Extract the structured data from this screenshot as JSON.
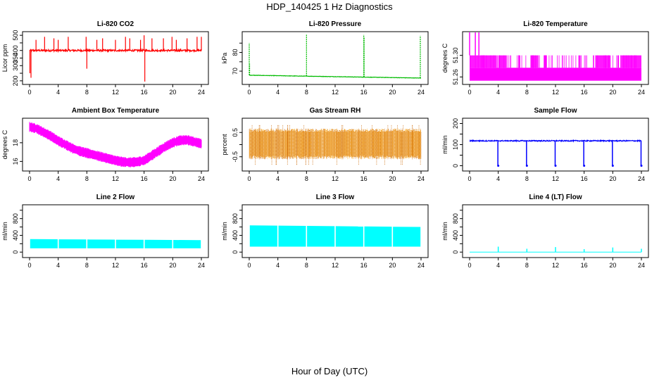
{
  "figure_title": "HDP_140425 1 Hz Diagnostics",
  "xaxis_label": "Hour of Day (UTC)",
  "chart_data": [
    {
      "id": "co2",
      "type": "line",
      "title": "Li-820 CO2",
      "ylabel": "Licor ppm",
      "xlim": [
        0,
        24
      ],
      "xticks": [
        0,
        4,
        8,
        12,
        16,
        20,
        24
      ],
      "ylim": [
        190,
        510
      ],
      "yticks": [
        200,
        250,
        300,
        350,
        400,
        450,
        500
      ],
      "ytick_labels": [
        "200",
        "",
        "300",
        "350",
        "400",
        "",
        "500"
      ],
      "color": "#ff0000",
      "series": [
        {
          "name": "CO2",
          "baseline": [
            400,
            400
          ],
          "noise": 12,
          "spikes": [
            [
              0.05,
              250
            ],
            [
              0.2,
              220
            ],
            [
              0.9,
              470
            ],
            [
              2.1,
              490
            ],
            [
              3.4,
              480
            ],
            [
              4.0,
              470
            ],
            [
              5.4,
              490
            ],
            [
              7.9,
              490
            ],
            [
              8.0,
              280
            ],
            [
              9.4,
              470
            ],
            [
              10.2,
              480
            ],
            [
              12.0,
              470
            ],
            [
              13.4,
              490
            ],
            [
              14.0,
              480
            ],
            [
              15.5,
              470
            ],
            [
              16.0,
              500
            ],
            [
              16.1,
              195
            ],
            [
              17.1,
              480
            ],
            [
              18.7,
              480
            ],
            [
              19.9,
              490
            ],
            [
              20.5,
              470
            ],
            [
              22.0,
              480
            ],
            [
              23.4,
              490
            ],
            [
              24.0,
              490
            ]
          ]
        }
      ]
    },
    {
      "id": "pressure",
      "type": "line",
      "title": "Li-820 Pressure",
      "ylabel": "kPa",
      "xlim": [
        0,
        24
      ],
      "xticks": [
        0,
        4,
        8,
        12,
        16,
        20,
        24
      ],
      "ylim": [
        64,
        90
      ],
      "yticks": [
        70,
        75,
        80,
        85
      ],
      "ytick_labels": [
        "70",
        "",
        "80",
        ""
      ],
      "color": "#00bb00",
      "series": [
        {
          "name": "Pressure",
          "baseline": [
            67.8,
            66.3
          ],
          "noise": 0.2,
          "spikes": [
            [
              0.0,
              85
            ],
            [
              0.05,
              74
            ],
            [
              8.0,
              89.5
            ],
            [
              16.0,
              89.5
            ],
            [
              16.05,
              88
            ],
            [
              23.9,
              89
            ]
          ]
        }
      ]
    },
    {
      "id": "temperature",
      "type": "band",
      "title": "Li-820 Temperature",
      "ylabel": "degrees C",
      "xlim": [
        0,
        24
      ],
      "xticks": [
        0,
        4,
        8,
        12,
        16,
        20,
        24
      ],
      "ylim": [
        51.25,
        51.34
      ],
      "yticks": [
        51.26,
        51.3
      ],
      "ytick_labels": [
        "51.26",
        "51.30"
      ],
      "color": "#ff00ff",
      "series": [
        {
          "name": "Temperature",
          "low": 51.253,
          "high": 51.277,
          "upper": 51.3,
          "upper_ranges": [
            [
              0,
              3.8
            ],
            [
              4.0,
              5.2
            ],
            [
              8.5,
              9.5
            ],
            [
              10.4,
              10.8
            ],
            [
              15.2,
              15.5
            ],
            [
              17.6,
              19.7
            ],
            [
              21.2,
              24
            ]
          ],
          "spikes": [
            [
              0.0,
              51.345
            ],
            [
              0.8,
              51.345
            ],
            [
              1.3,
              51.345
            ]
          ]
        }
      ]
    },
    {
      "id": "ambient",
      "type": "band",
      "title": "Ambient Box Temperature",
      "ylabel": "degrees C",
      "xlim": [
        0,
        24
      ],
      "xticks": [
        0,
        4,
        8,
        12,
        16,
        20,
        24
      ],
      "ylim": [
        15.2,
        20.4
      ],
      "yticks": [
        16,
        18
      ],
      "ytick_labels": [
        "16",
        "18"
      ],
      "color": "#ff00ff",
      "series": [
        {
          "name": "Ambient",
          "halfwidth": 0.45,
          "x": [
            0,
            1,
            2,
            3,
            4,
            5,
            6,
            7,
            8,
            9,
            10,
            11,
            12,
            13,
            14,
            15,
            16,
            17,
            18,
            19,
            20,
            21,
            22,
            23,
            24
          ],
          "y": [
            19.7,
            19.5,
            19.1,
            18.7,
            18.2,
            17.8,
            17.4,
            17.1,
            16.9,
            16.7,
            16.5,
            16.3,
            16.1,
            15.95,
            15.9,
            15.95,
            16.1,
            16.6,
            17.1,
            17.6,
            18.0,
            18.25,
            18.3,
            18.1,
            17.9
          ]
        }
      ]
    },
    {
      "id": "rh",
      "type": "band",
      "title": "Gas Stream RH",
      "ylabel": "percent",
      "xlim": [
        0,
        24
      ],
      "xticks": [
        0,
        4,
        8,
        12,
        16,
        20,
        24
      ],
      "ylim": [
        -1.0,
        1.0
      ],
      "yticks": [
        -0.5,
        0.0,
        0.5
      ],
      "ytick_labels": [
        "-0.5",
        "",
        "0.5"
      ],
      "color": "#ffa500",
      "color2": "#cc6600",
      "series": [
        {
          "name": "RH",
          "low": -0.6,
          "high": 0.65,
          "extreme_low": -0.85,
          "extreme_high": 0.8
        }
      ]
    },
    {
      "id": "sample",
      "type": "line",
      "title": "Sample Flow",
      "ylabel": "ml/min",
      "xlim": [
        0,
        24
      ],
      "xticks": [
        0,
        4,
        8,
        12,
        16,
        20,
        24
      ],
      "ylim": [
        -15,
        215
      ],
      "yticks": [
        0,
        50,
        100,
        150,
        200
      ],
      "ytick_labels": [
        "0",
        "",
        "100",
        "",
        "200"
      ],
      "color": "#0000ff",
      "series": [
        {
          "name": "Sample",
          "baseline": [
            118,
            118
          ],
          "noise": 5,
          "dips": [
            [
              3.9,
              4.0,
              0
            ],
            [
              7.9,
              8.0,
              0
            ],
            [
              11.9,
              12.0,
              0
            ],
            [
              15.9,
              16.0,
              0
            ],
            [
              19.9,
              20.0,
              0
            ],
            [
              23.9,
              24.0,
              0
            ]
          ]
        }
      ]
    },
    {
      "id": "line2",
      "type": "band",
      "title": "Line 2 Flow",
      "ylabel": "ml/min",
      "xlim": [
        0,
        24
      ],
      "xticks": [
        0,
        4,
        8,
        12,
        16,
        20,
        24
      ],
      "ylim": [
        -80,
        1080
      ],
      "yticks": [
        0,
        200,
        400,
        600,
        800,
        1000
      ],
      "ytick_labels": [
        "0",
        "",
        "400",
        "",
        "800",
        ""
      ],
      "color": "#00ffff",
      "series": [
        {
          "name": "Line 2",
          "low": 90,
          "high_start": 310,
          "high_end": 285,
          "gaps": [
            4,
            8,
            12,
            16,
            20
          ]
        }
      ]
    },
    {
      "id": "line3",
      "type": "band",
      "title": "Line 3 Flow",
      "ylabel": "ml/min",
      "xlim": [
        0,
        24
      ],
      "xticks": [
        0,
        4,
        8,
        12,
        16,
        20,
        24
      ],
      "ylim": [
        -80,
        1080
      ],
      "yticks": [
        0,
        200,
        400,
        600,
        800,
        1000
      ],
      "ytick_labels": [
        "0",
        "",
        "400",
        "",
        "800",
        ""
      ],
      "color": "#00ffff",
      "series": [
        {
          "name": "Line 3",
          "low": 130,
          "high_start": 640,
          "high_end": 600,
          "gaps": [
            4,
            8,
            12,
            16,
            20
          ]
        }
      ]
    },
    {
      "id": "line4",
      "type": "line",
      "title": "Line 4 (LT) Flow",
      "ylabel": "ml/min",
      "xlim": [
        0,
        24
      ],
      "xticks": [
        0,
        4,
        8,
        12,
        16,
        20,
        24
      ],
      "ylim": [
        -80,
        1080
      ],
      "yticks": [
        0,
        200,
        400,
        600,
        800,
        1000
      ],
      "ytick_labels": [
        "0",
        "",
        "400",
        "",
        "800",
        ""
      ],
      "color": "#00ffff",
      "series": [
        {
          "name": "Line 4",
          "baseline": 0,
          "pulses": [
            [
              4,
              130
            ],
            [
              8,
              80
            ],
            [
              12,
              120
            ],
            [
              16,
              70
            ],
            [
              20,
              110
            ],
            [
              24,
              80
            ]
          ]
        }
      ]
    }
  ]
}
